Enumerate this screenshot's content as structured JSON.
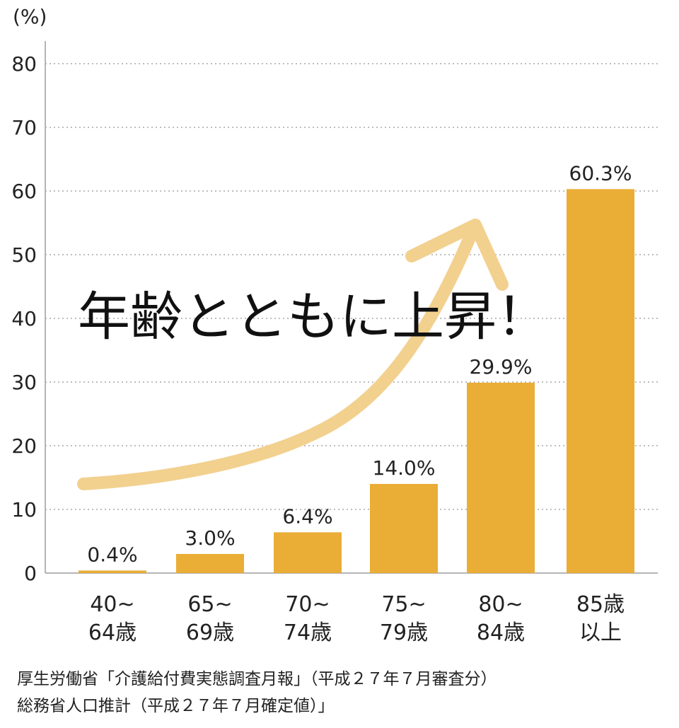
{
  "chart_data": {
    "type": "bar",
    "ylabel": "(%)",
    "ylim": [
      0,
      80
    ],
    "yticks": [
      0,
      10,
      20,
      30,
      40,
      50,
      60,
      70,
      80
    ],
    "grid": true,
    "categories": [
      [
        "40~",
        "64歳"
      ],
      [
        "65~",
        "69歳"
      ],
      [
        "70~",
        "74歳"
      ],
      [
        "75~",
        "79歳"
      ],
      [
        "80~",
        "84歳"
      ],
      [
        "85歳",
        "以上"
      ]
    ],
    "values": [
      0.4,
      3.0,
      6.4,
      14.0,
      29.9,
      60.3
    ],
    "value_labels": [
      "0.4%",
      "3.0%",
      "6.4%",
      "14.0%",
      "29.9%",
      "60.3%"
    ],
    "bar_color": "#EAAD36",
    "annotation": {
      "text": "年齢とともに上昇！",
      "arrow_color": "#F2D08E"
    }
  },
  "source": {
    "line1": "厚生労働省「介護給付費実態調査月報」（平成２７年７月審査分）",
    "line2": "総務省人口推計（平成２７年７月確定値）」"
  }
}
